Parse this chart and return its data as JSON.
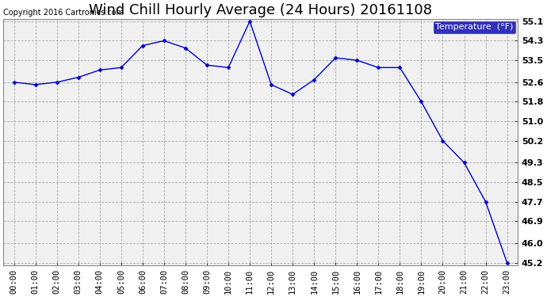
{
  "title": "Wind Chill Hourly Average (24 Hours) 20161108",
  "copyright": "Copyright 2016 Cartronics.com",
  "legend_label": "Temperature  (°F)",
  "x_labels": [
    "00:00",
    "01:00",
    "02:00",
    "03:00",
    "04:00",
    "05:00",
    "06:00",
    "07:00",
    "08:00",
    "09:00",
    "10:00",
    "11:00",
    "12:00",
    "13:00",
    "14:00",
    "15:00",
    "16:00",
    "17:00",
    "18:00",
    "19:00",
    "20:00",
    "21:00",
    "22:00",
    "23:00"
  ],
  "y_values": [
    52.6,
    52.5,
    52.6,
    52.8,
    53.1,
    53.2,
    54.1,
    54.3,
    54.0,
    53.3,
    53.2,
    55.1,
    52.5,
    52.1,
    52.7,
    53.6,
    53.5,
    53.2,
    53.2,
    51.8,
    50.2,
    49.3,
    47.7,
    45.2
  ],
  "ylim_min": 45.2,
  "ylim_max": 55.1,
  "yticks": [
    45.2,
    46.0,
    46.9,
    47.7,
    48.5,
    49.3,
    50.2,
    51.0,
    51.8,
    52.6,
    53.5,
    54.3,
    55.1
  ],
  "line_color": "#0000cc",
  "background_color": "#ffffff",
  "plot_bg_color": "#f0f0f0",
  "grid_color": "#aaaaaa",
  "title_fontsize": 13,
  "copyright_fontsize": 7,
  "tick_fontsize": 7.5,
  "ytick_fontsize": 8,
  "legend_bg": "#0000aa",
  "legend_text_color": "#ffffff",
  "legend_fontsize": 8
}
